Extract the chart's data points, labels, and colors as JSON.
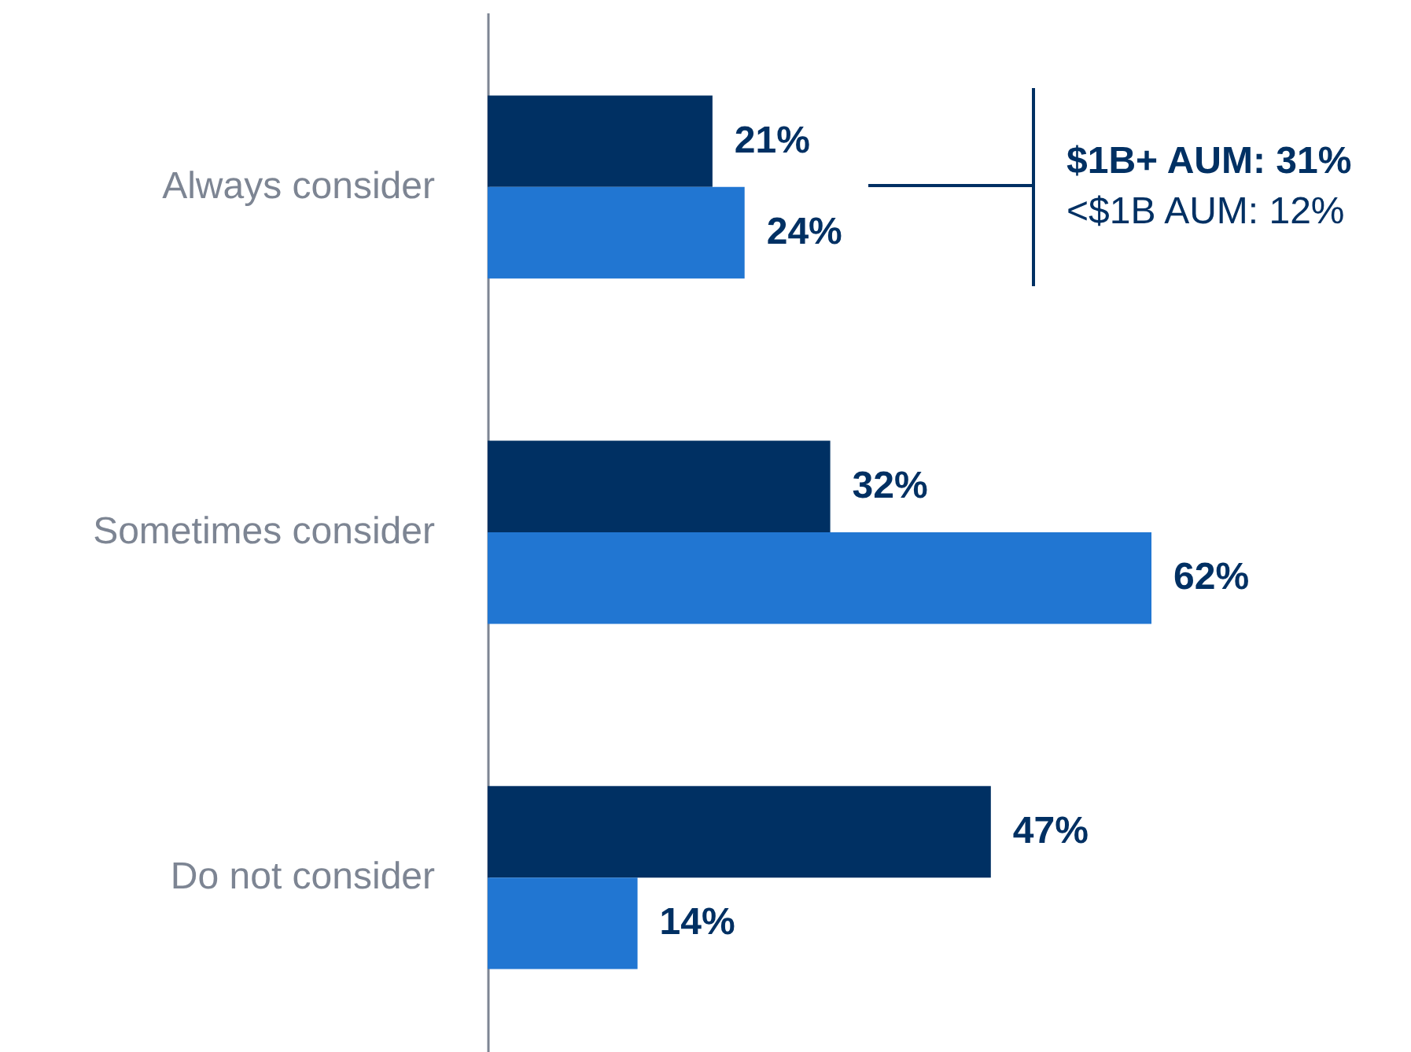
{
  "chart_data": {
    "type": "bar",
    "orientation": "horizontal",
    "categories": [
      "Always consider",
      "Sometimes consider",
      "Do not consider"
    ],
    "series": [
      {
        "color": "#003063",
        "values": [
          21,
          32,
          47
        ],
        "value_labels": [
          "21%",
          "32%",
          "47%"
        ]
      },
      {
        "color": "#2176d2",
        "values": [
          24,
          62,
          14
        ],
        "value_labels": [
          "24%",
          "62%",
          "14%"
        ]
      }
    ],
    "annotations": [
      "$1B+ AUM: 31%",
      "<$1B AUM: 12%"
    ]
  }
}
